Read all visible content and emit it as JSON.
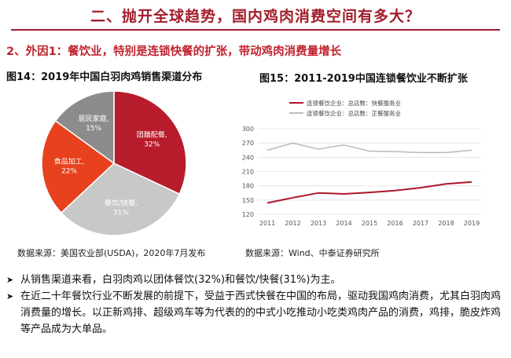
{
  "header": {
    "title": "二、抛开全球趋势，国内鸡肉消费空间有多大？",
    "subtitle": "2、外因1：餐饮业，特别是连锁快餐的扩张，带动鸡肉消费量增长"
  },
  "colors": {
    "accent": "#a31d2b",
    "pie_group": "#b71c2c",
    "pie_fastfood": "#c8c8c8",
    "pie_processing": "#e8411e",
    "pie_household": "#8c8c8c",
    "line_primary": "#b0152a",
    "line_secondary": "#bdbdbd"
  },
  "figure14": {
    "title": "图14：2019年中国白羽肉鸡销售渠道分布",
    "source": "数据来源：美国农业部(USDA)，2020年7月发布"
  },
  "figure15": {
    "title": "图15：2011-2019中国连锁餐饮业不断扩张",
    "source": "数据来源：Wind、中泰证券研究所"
  },
  "bullets": [
    "从销售渠道来看，白羽肉鸡以团体餐饮(32%)和餐饮/快餐(31%)为主。",
    "在近二十年餐饮行业不断发展的前提下，受益于西式快餐在中国的布局，驱动我国鸡肉消费，尤其白羽肉鸡消费量的增长。以正新鸡排、超级鸡车等为代表的的中式小吃推动小吃类鸡肉产品的消费，鸡排，脆皮炸鸡等产品成为大单品。"
  ],
  "chart_data": [
    {
      "type": "pie",
      "title": "",
      "slices": [
        {
          "label": "团膳配餐,",
          "value_label": "32%",
          "value": 32
        },
        {
          "label": "餐饮/快餐,",
          "value_label": "31%",
          "value": 31
        },
        {
          "label": "食品加工,",
          "value_label": "22%",
          "value": 22
        },
        {
          "label": "居民家庭,",
          "value_label": "15%",
          "value": 15
        }
      ]
    },
    {
      "type": "line",
      "title": "",
      "x": [
        2011,
        2012,
        2013,
        2014,
        2015,
        2016,
        2017,
        2018,
        2019
      ],
      "ylim": [
        120,
        300
      ],
      "yticks": [
        120,
        150,
        180,
        210,
        240,
        270,
        300
      ],
      "grid": true,
      "legend_position": "top-left",
      "series": [
        {
          "name": "连锁餐饮企业：总店数：快餐服务业",
          "values": [
            144,
            155,
            165,
            163,
            166,
            170,
            176,
            184,
            188
          ]
        },
        {
          "name": "连锁餐饮企业：总店数：正餐服务业",
          "values": [
            255,
            270,
            257,
            266,
            253,
            252,
            250,
            250,
            255
          ]
        }
      ]
    }
  ]
}
